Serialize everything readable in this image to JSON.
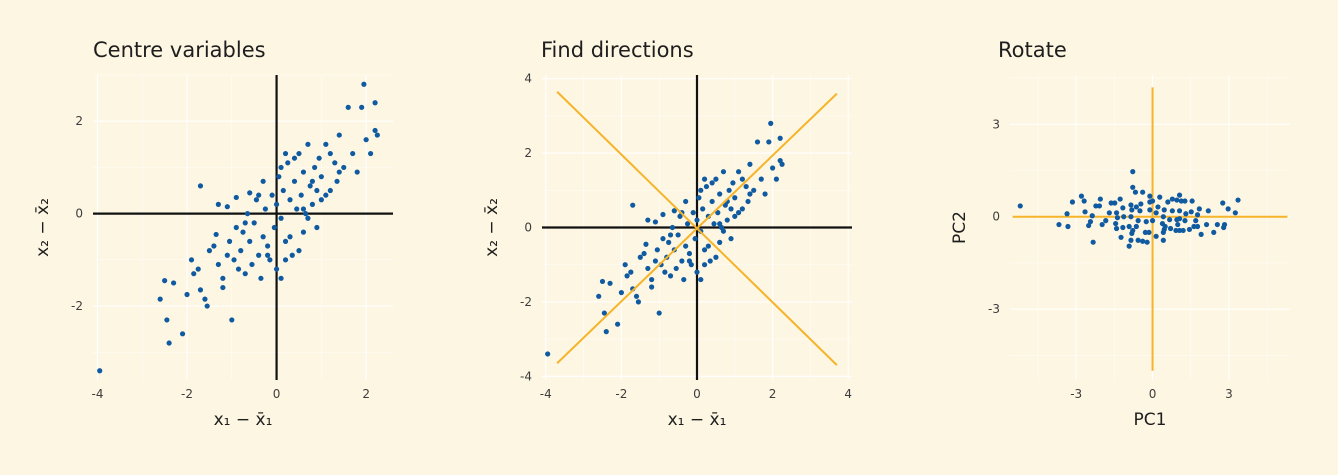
{
  "colors": {
    "background": "#fdf6e3",
    "points": "#0f5aa0",
    "axes_lines": "#111111",
    "directions": "#f5b42a",
    "grid": "#ffffff"
  },
  "panels": [
    {
      "title": "Centre variables"
    },
    {
      "title": "Find directions"
    },
    {
      "title": "Rotate"
    }
  ],
  "chart_data": [
    {
      "type": "scatter",
      "title": "Centre variables",
      "xlabel": "x₁ − x̄₁",
      "ylabel": "x₂ − x̄₂",
      "xlim": [
        -4.1,
        2.6
      ],
      "ylim": [
        -3.6,
        3.0
      ],
      "xticks": [
        "-4",
        "-2",
        "0",
        "2"
      ],
      "yticks": [
        "-2",
        "0",
        "2"
      ],
      "reference_lines": [
        "x = 0",
        "y = 0"
      ],
      "points": [
        [
          -3.95,
          -3.4
        ],
        [
          -2.6,
          -1.85
        ],
        [
          -2.5,
          -1.45
        ],
        [
          -2.45,
          -2.3
        ],
        [
          -2.4,
          -2.8
        ],
        [
          -2.1,
          -2.6
        ],
        [
          -2.0,
          -1.75
        ],
        [
          -1.85,
          -1.3
        ],
        [
          -1.75,
          -1.2
        ],
        [
          -1.7,
          -1.65
        ],
        [
          -1.6,
          -1.85
        ],
        [
          -1.55,
          -2.0
        ],
        [
          -1.7,
          0.6
        ],
        [
          -1.4,
          -0.7
        ],
        [
          -1.35,
          -0.45
        ],
        [
          -1.3,
          -1.1
        ],
        [
          -1.2,
          -1.4
        ],
        [
          -1.1,
          -0.9
        ],
        [
          -1.05,
          -0.6
        ],
        [
          -1.0,
          -2.3
        ],
        [
          -0.95,
          -1.0
        ],
        [
          -0.9,
          -0.3
        ],
        [
          -0.85,
          -1.2
        ],
        [
          -0.8,
          -0.8
        ],
        [
          -0.75,
          -0.4
        ],
        [
          -0.7,
          -1.3
        ],
        [
          -0.65,
          0.0
        ],
        [
          -0.6,
          -0.6
        ],
        [
          -0.55,
          -1.1
        ],
        [
          -0.5,
          -0.2
        ],
        [
          -0.45,
          0.3
        ],
        [
          -0.4,
          -0.9
        ],
        [
          -0.35,
          -1.4
        ],
        [
          -0.3,
          -0.5
        ],
        [
          -0.25,
          0.1
        ],
        [
          -0.2,
          -0.7
        ],
        [
          -0.15,
          -1.0
        ],
        [
          -0.1,
          0.4
        ],
        [
          -0.05,
          -0.3
        ],
        [
          0.0,
          0.2
        ],
        [
          0.05,
          0.8
        ],
        [
          0.1,
          -0.1
        ],
        [
          0.15,
          0.5
        ],
        [
          0.2,
          -0.6
        ],
        [
          0.25,
          1.1
        ],
        [
          0.3,
          0.3
        ],
        [
          0.35,
          -0.9
        ],
        [
          0.4,
          0.7
        ],
        [
          0.45,
          0.1
        ],
        [
          0.5,
          1.3
        ],
        [
          0.55,
          0.4
        ],
        [
          0.6,
          0.9
        ],
        [
          0.65,
          0.0
        ],
        [
          0.7,
          1.5
        ],
        [
          0.75,
          0.6
        ],
        [
          0.8,
          0.2
        ],
        [
          0.85,
          1.0
        ],
        [
          0.9,
          0.5
        ],
        [
          0.95,
          1.2
        ],
        [
          1.0,
          0.8
        ],
        [
          1.1,
          1.5
        ],
        [
          1.2,
          0.5
        ],
        [
          1.3,
          1.1
        ],
        [
          1.35,
          0.7
        ],
        [
          1.4,
          1.7
        ],
        [
          1.5,
          1.0
        ],
        [
          1.6,
          2.3
        ],
        [
          1.7,
          1.3
        ],
        [
          1.8,
          0.9
        ],
        [
          1.9,
          2.3
        ],
        [
          1.95,
          2.8
        ],
        [
          2.0,
          1.6
        ],
        [
          2.1,
          1.3
        ],
        [
          2.2,
          1.8
        ],
        [
          2.25,
          1.7
        ],
        [
          2.2,
          2.4
        ],
        [
          -0.6,
          0.45
        ],
        [
          -0.9,
          0.35
        ],
        [
          -1.3,
          0.2
        ],
        [
          -1.1,
          0.15
        ],
        [
          0.3,
          -0.5
        ],
        [
          0.5,
          -0.8
        ],
        [
          0.6,
          -0.4
        ],
        [
          0.2,
          -1.0
        ],
        [
          0.1,
          -1.4
        ],
        [
          0.0,
          -1.2
        ],
        [
          -0.2,
          -0.9
        ],
        [
          0.9,
          -0.3
        ],
        [
          1.0,
          0.3
        ],
        [
          0.4,
          1.2
        ],
        [
          0.2,
          1.3
        ],
        [
          0.1,
          1.0
        ],
        [
          -0.3,
          0.7
        ],
        [
          -0.4,
          0.4
        ],
        [
          0.6,
          0.1
        ],
        [
          0.8,
          0.7
        ],
        [
          1.1,
          0.4
        ],
        [
          1.2,
          1.3
        ],
        [
          1.4,
          0.9
        ],
        [
          0.7,
          -0.1
        ],
        [
          -0.7,
          -0.2
        ],
        [
          -1.5,
          -0.8
        ],
        [
          -1.9,
          -1.0
        ],
        [
          -2.3,
          -1.5
        ],
        [
          -1.2,
          -1.6
        ]
      ]
    },
    {
      "type": "scatter",
      "title": "Find directions",
      "xlabel": "x₁ − x̄₁",
      "ylabel": "x₂ − x̄₂",
      "xlim": [
        -4.1,
        4.1
      ],
      "ylim": [
        -4.1,
        4.1
      ],
      "xticks": [
        "-4",
        "-2",
        "0",
        "2",
        "4"
      ],
      "yticks": [
        "-4",
        "-2",
        "0",
        "2",
        "4"
      ],
      "reference_lines": [
        "x = 0",
        "y = 0"
      ],
      "direction_lines": [
        {
          "from": [
            -3.7,
            -3.65
          ],
          "to": [
            3.7,
            3.6
          ]
        },
        {
          "from": [
            -3.7,
            3.65
          ],
          "to": [
            3.7,
            -3.7
          ]
        }
      ],
      "points": "same as Centre variables"
    },
    {
      "type": "scatter",
      "title": "Rotate",
      "xlabel": "PC1",
      "ylabel": "PC2",
      "xlim": [
        -5.6,
        5.4
      ],
      "ylim": [
        -5.3,
        4.6
      ],
      "xticks": [
        "-3",
        "0",
        "3"
      ],
      "yticks": [
        "-3",
        "0",
        "3"
      ],
      "reference_lines": [
        "PC1 = 0",
        "PC2 = 0"
      ],
      "points": "Centre variables points rotated onto principal components"
    }
  ]
}
